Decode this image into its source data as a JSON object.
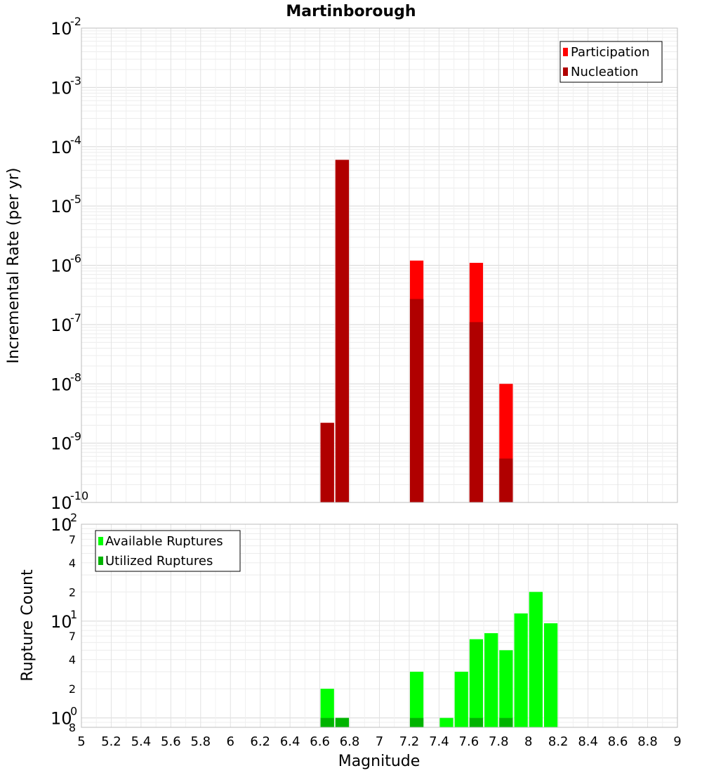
{
  "chart_data": [
    {
      "type": "bar",
      "title": "Martinborough",
      "xlabel": "",
      "ylabel": "Incremental Rate (per yr)",
      "yscale": "log",
      "ylim": [
        1e-10,
        0.01
      ],
      "xlim": [
        5,
        9
      ],
      "bar_width": 0.1,
      "grid": true,
      "legend_position": "top-right",
      "ytick_labels": [
        {
          "value": 0.01,
          "base": "10",
          "exp": "-2"
        },
        {
          "value": 0.001,
          "base": "10",
          "exp": "-3"
        },
        {
          "value": 0.0001,
          "base": "10",
          "exp": "-4"
        },
        {
          "value": 1e-05,
          "base": "10",
          "exp": "-5"
        },
        {
          "value": 1e-06,
          "base": "10",
          "exp": "-6"
        },
        {
          "value": 1e-07,
          "base": "10",
          "exp": "-7"
        },
        {
          "value": 1e-08,
          "base": "10",
          "exp": "-8"
        },
        {
          "value": 1e-09,
          "base": "10",
          "exp": "-9"
        },
        {
          "value": 1e-10,
          "base": "10",
          "exp": "-10"
        }
      ],
      "series": [
        {
          "name": "Participation",
          "color": "#ff0000",
          "x": [
            6.65,
            6.75,
            7.25,
            7.65,
            7.85
          ],
          "values": [
            2.2e-09,
            6e-05,
            1.2e-06,
            1.1e-06,
            1e-08
          ]
        },
        {
          "name": "Nucleation",
          "color": "#b00000",
          "x": [
            6.65,
            6.75,
            7.25,
            7.65,
            7.85
          ],
          "values": [
            2.2e-09,
            6e-05,
            2.7e-07,
            1.1e-07,
            5.5e-10
          ]
        }
      ]
    },
    {
      "type": "bar",
      "title": "",
      "xlabel": "Magnitude",
      "ylabel": "Rupture Count",
      "yscale": "log",
      "ylim": [
        0.8,
        100
      ],
      "xlim": [
        5,
        9
      ],
      "bar_width": 0.1,
      "grid": true,
      "legend_position": "top-left",
      "xtick_labels": [
        "5",
        "5.2",
        "5.4",
        "5.6",
        "5.8",
        "6",
        "6.2",
        "6.4",
        "6.6",
        "6.8",
        "7",
        "7.2",
        "7.4",
        "7.6",
        "7.8",
        "8",
        "8.2",
        "8.4",
        "8.6",
        "8.8",
        "9"
      ],
      "ytick_labels": [
        {
          "value": 100,
          "base": "10",
          "exp": "2"
        },
        {
          "value": 70,
          "minor": "7"
        },
        {
          "value": 40,
          "minor": "4"
        },
        {
          "value": 20,
          "minor": "2"
        },
        {
          "value": 10,
          "base": "10",
          "exp": "1"
        },
        {
          "value": 7,
          "minor": "7"
        },
        {
          "value": 4,
          "minor": "4"
        },
        {
          "value": 2,
          "minor": "2"
        },
        {
          "value": 1,
          "base": "10",
          "exp": "0"
        },
        {
          "value": 0.8,
          "minor": "8"
        }
      ],
      "series": [
        {
          "name": "Available Ruptures",
          "color": "#00ff00",
          "x": [
            6.65,
            6.75,
            7.25,
            7.45,
            7.55,
            7.65,
            7.75,
            7.85,
            7.95,
            8.05,
            8.15
          ],
          "values": [
            2,
            1,
            3,
            1,
            3,
            6.5,
            7.5,
            5,
            12,
            20,
            9.5
          ]
        },
        {
          "name": "Utilized Ruptures",
          "color": "#00b400",
          "x": [
            6.65,
            6.75,
            7.25,
            7.65,
            7.85
          ],
          "values": [
            1,
            1,
            1,
            1,
            1
          ]
        }
      ]
    }
  ]
}
